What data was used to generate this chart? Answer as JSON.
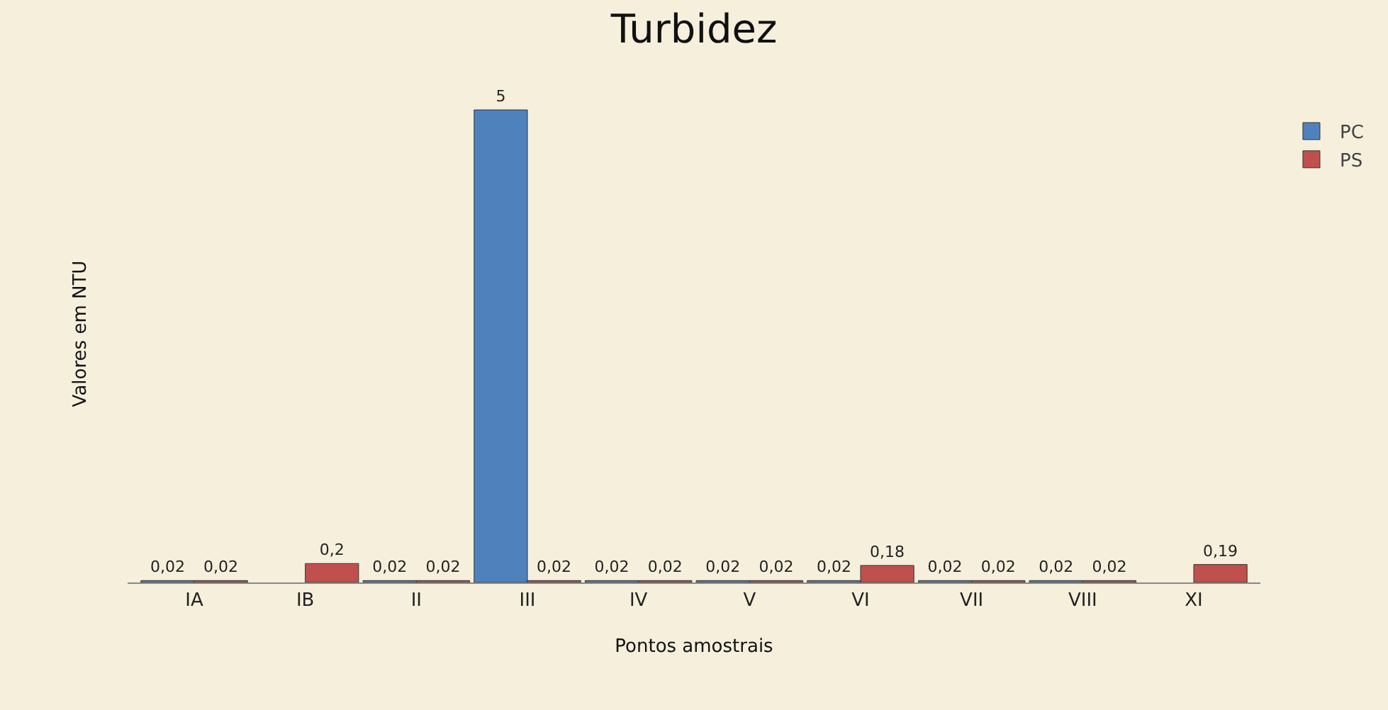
{
  "chart_data": {
    "type": "bar",
    "title": "Turbidez",
    "xlabel": "Pontos amostrais",
    "ylabel": "Valores em NTU",
    "categories": [
      "IA",
      "IB",
      "II",
      "III",
      "IV",
      "V",
      "VI",
      "VII",
      "VIII",
      "XI"
    ],
    "series": [
      {
        "name": "PC",
        "color": "#4f81bd",
        "values": [
          0.02,
          null,
          0.02,
          5,
          0.02,
          0.02,
          0.02,
          0.02,
          0.02,
          null
        ],
        "value_labels": [
          "0,02",
          null,
          "0,02",
          "5",
          "0,02",
          "0,02",
          "0,02",
          "0,02",
          "0,02",
          null
        ]
      },
      {
        "name": "PS",
        "color": "#c0504d",
        "values": [
          0.02,
          0.2,
          0.02,
          0.02,
          0.02,
          0.02,
          0.18,
          0.02,
          0.02,
          0.19
        ],
        "value_labels": [
          "0,02",
          "0,2",
          "0,02",
          "0,02",
          "0,02",
          "0,02",
          "0,18",
          "0,02",
          "0,02",
          "0,19"
        ]
      }
    ],
    "tick_labels": "x",
    "grid": false,
    "legend": "top right"
  }
}
